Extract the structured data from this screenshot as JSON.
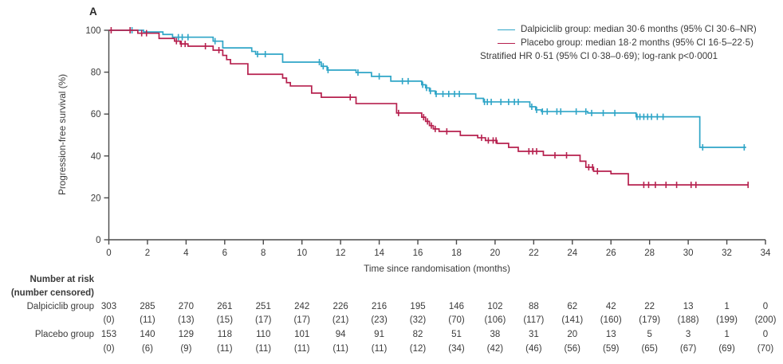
{
  "panel_label": "A",
  "legend": {
    "entries": [
      {
        "label": "Dalpiciclib group: median 30·6 months (95% CI 30·6–NR)",
        "color": "#2FA5C7"
      },
      {
        "label": "Placebo group: median 18·2 months (95% CI 16·5–22·5)",
        "color": "#B6204E"
      }
    ],
    "note": "Stratified HR 0·51 (95% CI 0·38–0·69); log-rank p<0·0001"
  },
  "chart_data": {
    "type": "line",
    "subtype": "kaplan-meier-step",
    "title": "",
    "xlabel": "Time since randomisation (months)",
    "ylabel": "Progression-free survival (%)",
    "xlim": [
      0,
      34
    ],
    "ylim": [
      0,
      100
    ],
    "xticks": [
      0,
      2,
      4,
      6,
      8,
      10,
      12,
      14,
      16,
      18,
      20,
      22,
      24,
      26,
      28,
      30,
      32,
      34
    ],
    "yticks": [
      0,
      20,
      40,
      60,
      80,
      100
    ],
    "grid": false,
    "legend_position": "top-right",
    "series": [
      {
        "name": "Dalpiciclib group",
        "color": "#2FA5C7",
        "end_time": 33.0,
        "steps": [
          [
            0,
            100
          ],
          [
            1.8,
            99.2
          ],
          [
            2.8,
            98
          ],
          [
            3.3,
            96.7
          ],
          [
            5.4,
            94.8
          ],
          [
            5.9,
            91.6
          ],
          [
            7.4,
            89.9
          ],
          [
            7.6,
            88.6
          ],
          [
            9.0,
            84.8
          ],
          [
            11.0,
            82.8
          ],
          [
            11.3,
            81
          ],
          [
            12.8,
            79.8
          ],
          [
            13.6,
            78
          ],
          [
            14.6,
            75.7
          ],
          [
            16.2,
            74
          ],
          [
            16.4,
            72.5
          ],
          [
            16.6,
            71
          ],
          [
            16.9,
            69.6
          ],
          [
            19.0,
            67.5
          ],
          [
            19.4,
            65.8
          ],
          [
            21.8,
            63.5
          ],
          [
            22.1,
            62
          ],
          [
            22.4,
            61.2
          ],
          [
            24.8,
            60.5
          ],
          [
            27.3,
            58.7
          ],
          [
            30.6,
            44.1
          ]
        ],
        "censor_times": [
          1.2,
          3.6,
          3.8,
          4.1,
          5.5,
          7.7,
          8.1,
          10.9,
          11.1,
          11.35,
          12.9,
          14.0,
          15.2,
          15.5,
          16.25,
          16.45,
          16.65,
          16.95,
          17.3,
          17.6,
          17.9,
          18.15,
          19.45,
          19.6,
          19.8,
          20.3,
          20.7,
          21.0,
          21.2,
          21.9,
          22.15,
          22.45,
          22.7,
          23.2,
          23.4,
          24.2,
          24.7,
          25.0,
          25.6,
          26.2,
          27.35,
          27.5,
          27.7,
          27.9,
          28.1,
          28.4,
          28.7,
          30.75,
          32.9
        ]
      },
      {
        "name": "Placebo group",
        "color": "#B6204E",
        "end_time": 33.1,
        "steps": [
          [
            0,
            100
          ],
          [
            1.5,
            98.6
          ],
          [
            2.6,
            96.1
          ],
          [
            3.4,
            94.8
          ],
          [
            3.7,
            93.5
          ],
          [
            4.1,
            92.4
          ],
          [
            5.4,
            90.5
          ],
          [
            5.9,
            88
          ],
          [
            6.1,
            86
          ],
          [
            6.3,
            84
          ],
          [
            7.2,
            79
          ],
          [
            9.0,
            77.2
          ],
          [
            9.2,
            75
          ],
          [
            9.4,
            73.4
          ],
          [
            10.5,
            70
          ],
          [
            11.0,
            68
          ],
          [
            12.8,
            65
          ],
          [
            14.9,
            60.5
          ],
          [
            16.2,
            58.5
          ],
          [
            16.4,
            56.5
          ],
          [
            16.6,
            54.5
          ],
          [
            16.8,
            52.9
          ],
          [
            17.1,
            51.7
          ],
          [
            18.2,
            49.8
          ],
          [
            19.1,
            48.7
          ],
          [
            19.5,
            47.4
          ],
          [
            20.1,
            46
          ],
          [
            20.7,
            44.1
          ],
          [
            21.2,
            42.2
          ],
          [
            22.5,
            40.3
          ],
          [
            24.4,
            37.5
          ],
          [
            24.7,
            34.6
          ],
          [
            25.1,
            32.7
          ],
          [
            26.0,
            31.5
          ],
          [
            26.9,
            26.2
          ]
        ],
        "censor_times": [
          0.12,
          1.1,
          1.7,
          1.95,
          3.5,
          3.75,
          3.95,
          5.0,
          5.7,
          12.5,
          15.0,
          16.3,
          16.5,
          16.7,
          16.9,
          17.5,
          19.3,
          19.65,
          19.9,
          20.05,
          21.75,
          21.95,
          22.15,
          23.1,
          23.7,
          24.85,
          25.05,
          25.3,
          27.7,
          27.95,
          28.3,
          28.85,
          29.4,
          30.15,
          30.4,
          33.1
        ]
      }
    ]
  },
  "risk_table": {
    "header_line1": "Number at risk",
    "header_line2": "(number censored)",
    "time_points": [
      0,
      2,
      4,
      6,
      8,
      10,
      12,
      14,
      16,
      18,
      20,
      22,
      24,
      26,
      28,
      30,
      32,
      34
    ],
    "rows": [
      {
        "label": "Dalpiciclib group",
        "at_risk": [
          303,
          285,
          270,
          261,
          251,
          242,
          226,
          216,
          195,
          146,
          102,
          88,
          62,
          42,
          22,
          13,
          1,
          0
        ],
        "censored": [
          0,
          11,
          13,
          15,
          17,
          17,
          21,
          23,
          32,
          70,
          106,
          117,
          141,
          160,
          179,
          188,
          199,
          200
        ]
      },
      {
        "label": "Placebo group",
        "at_risk": [
          153,
          140,
          129,
          118,
          110,
          101,
          94,
          91,
          82,
          51,
          38,
          31,
          20,
          13,
          5,
          3,
          1,
          0
        ],
        "censored": [
          0,
          6,
          9,
          11,
          11,
          11,
          11,
          11,
          12,
          34,
          42,
          46,
          56,
          59,
          65,
          67,
          69,
          70
        ]
      }
    ]
  },
  "colors": {
    "axis": "#4a4a4a",
    "text": "#3a3a3a"
  }
}
